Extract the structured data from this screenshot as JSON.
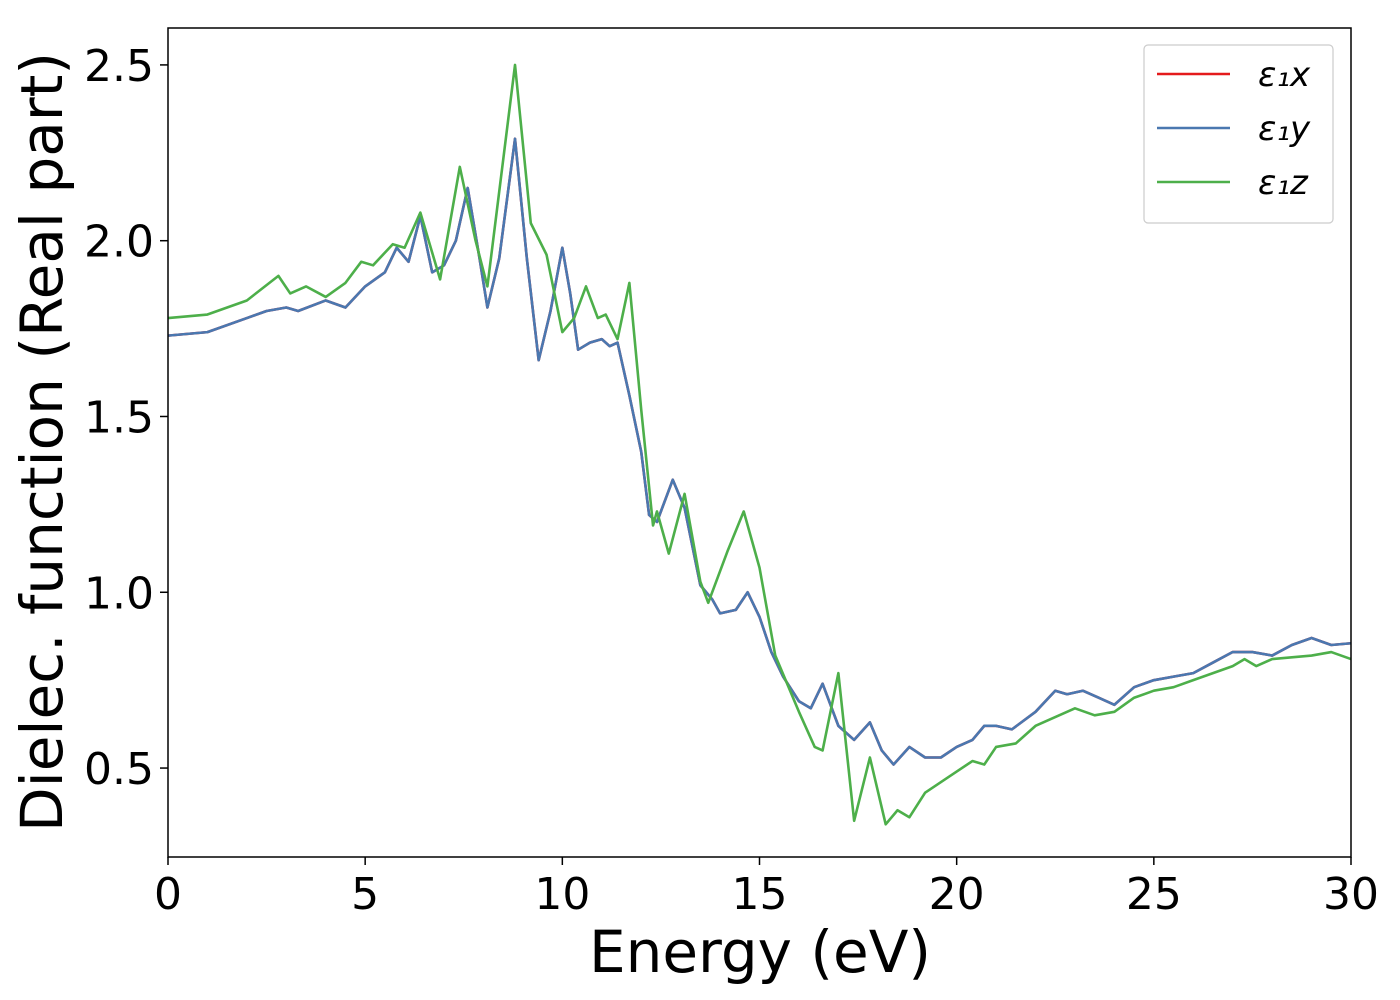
{
  "chart_data": {
    "type": "line",
    "xlabel": "Energy (eV)",
    "ylabel": "Dielec. function (Real part)",
    "xlim": [
      0,
      30
    ],
    "xticks": [
      0,
      5,
      10,
      15,
      20,
      25,
      30
    ],
    "ylim": [
      0.247,
      2.605
    ],
    "yticks": [
      0.5,
      {
        "value": 1,
        "label": "1.0"
      },
      1.5,
      {
        "value": 2,
        "label": "2.0"
      },
      2.5
    ],
    "legend": "upper right",
    "series": [
      {
        "name": "ε₁x",
        "color": "#e41a1c",
        "x": [
          0,
          1,
          2,
          2.5,
          3,
          3.3,
          4,
          4.5,
          5,
          5.5,
          5.8,
          6.1,
          6.4,
          6.7,
          7.0,
          7.3,
          7.6,
          7.9,
          8.1,
          8.4,
          8.8,
          9.1,
          9.4,
          9.7,
          10.0,
          10.2,
          10.4,
          10.7,
          11.0,
          11.2,
          11.4,
          11.7,
          12.0,
          12.2,
          12.4,
          12.8,
          13.1,
          13.5,
          13.8,
          14.0,
          14.4,
          14.7,
          15.0,
          15.3,
          15.6,
          16.0,
          16.3,
          16.6,
          17.0,
          17.4,
          17.8,
          18.1,
          18.4,
          18.8,
          19.2,
          19.6,
          20.0,
          20.4,
          20.7,
          21.0,
          21.4,
          22.0,
          22.5,
          22.8,
          23.2,
          23.6,
          24.0,
          24.5,
          25.0,
          25.5,
          26.0,
          26.5,
          27.0,
          27.5,
          28.0,
          28.5,
          29.0,
          29.5,
          30.0
        ],
        "values": [
          1.73,
          1.74,
          1.78,
          1.8,
          1.81,
          1.8,
          1.83,
          1.81,
          1.87,
          1.91,
          1.98,
          1.94,
          2.07,
          1.91,
          1.93,
          2.0,
          2.15,
          1.95,
          1.81,
          1.95,
          2.29,
          1.95,
          1.66,
          1.8,
          1.98,
          1.85,
          1.69,
          1.71,
          1.72,
          1.7,
          1.71,
          1.56,
          1.4,
          1.22,
          1.2,
          1.32,
          1.24,
          1.02,
          0.98,
          0.94,
          0.95,
          1.0,
          0.93,
          0.83,
          0.76,
          0.69,
          0.67,
          0.74,
          0.62,
          0.58,
          0.63,
          0.55,
          0.51,
          0.56,
          0.53,
          0.53,
          0.56,
          0.58,
          0.62,
          0.62,
          0.61,
          0.66,
          0.72,
          0.71,
          0.72,
          0.7,
          0.68,
          0.73,
          0.75,
          0.76,
          0.77,
          0.8,
          0.83,
          0.83,
          0.82,
          0.85,
          0.87,
          0.85,
          0.855
        ]
      },
      {
        "name": "ε₁y",
        "color": "#4a78b0",
        "x": [
          0,
          1,
          2,
          2.5,
          3,
          3.3,
          4,
          4.5,
          5,
          5.5,
          5.8,
          6.1,
          6.4,
          6.7,
          7.0,
          7.3,
          7.6,
          7.9,
          8.1,
          8.4,
          8.8,
          9.1,
          9.4,
          9.7,
          10.0,
          10.2,
          10.4,
          10.7,
          11.0,
          11.2,
          11.4,
          11.7,
          12.0,
          12.2,
          12.4,
          12.8,
          13.1,
          13.5,
          13.8,
          14.0,
          14.4,
          14.7,
          15.0,
          15.3,
          15.6,
          16.0,
          16.3,
          16.6,
          17.0,
          17.4,
          17.8,
          18.1,
          18.4,
          18.8,
          19.2,
          19.6,
          20.0,
          20.4,
          20.7,
          21.0,
          21.4,
          22.0,
          22.5,
          22.8,
          23.2,
          23.6,
          24.0,
          24.5,
          25.0,
          25.5,
          26.0,
          26.5,
          27.0,
          27.5,
          28.0,
          28.5,
          29.0,
          29.5,
          30.0
        ],
        "values": [
          1.73,
          1.74,
          1.78,
          1.8,
          1.81,
          1.8,
          1.83,
          1.81,
          1.87,
          1.91,
          1.98,
          1.94,
          2.07,
          1.91,
          1.93,
          2.0,
          2.15,
          1.95,
          1.81,
          1.95,
          2.29,
          1.95,
          1.66,
          1.8,
          1.98,
          1.85,
          1.69,
          1.71,
          1.72,
          1.7,
          1.71,
          1.56,
          1.4,
          1.22,
          1.2,
          1.32,
          1.24,
          1.02,
          0.98,
          0.94,
          0.95,
          1.0,
          0.93,
          0.83,
          0.76,
          0.69,
          0.67,
          0.74,
          0.62,
          0.58,
          0.63,
          0.55,
          0.51,
          0.56,
          0.53,
          0.53,
          0.56,
          0.58,
          0.62,
          0.62,
          0.61,
          0.66,
          0.72,
          0.71,
          0.72,
          0.7,
          0.68,
          0.73,
          0.75,
          0.76,
          0.77,
          0.8,
          0.83,
          0.83,
          0.82,
          0.85,
          0.87,
          0.85,
          0.855
        ]
      },
      {
        "name": "ε₁z",
        "color": "#4daf4a",
        "x": [
          0,
          1,
          2,
          2.8,
          3.1,
          3.5,
          4.0,
          4.5,
          4.9,
          5.2,
          5.7,
          6.0,
          6.4,
          6.9,
          7.4,
          7.8,
          8.1,
          8.8,
          9.2,
          9.6,
          10.0,
          10.3,
          10.6,
          10.9,
          11.1,
          11.4,
          11.7,
          12.0,
          12.3,
          12.4,
          12.7,
          13.1,
          13.5,
          13.7,
          14.2,
          14.6,
          15.0,
          15.4,
          16.0,
          16.4,
          16.6,
          17.0,
          17.4,
          17.8,
          18.2,
          18.5,
          18.8,
          19.2,
          20.0,
          20.4,
          20.7,
          21.0,
          21.5,
          22.0,
          22.4,
          23.0,
          23.5,
          24.0,
          24.5,
          25.0,
          25.5,
          26.0,
          26.5,
          27.0,
          27.3,
          27.6,
          28.0,
          29.0,
          29.5,
          30.0
        ],
        "values": [
          1.78,
          1.79,
          1.83,
          1.9,
          1.85,
          1.87,
          1.84,
          1.88,
          1.94,
          1.93,
          1.99,
          1.98,
          2.08,
          1.89,
          2.21,
          2.0,
          1.87,
          2.5,
          2.05,
          1.96,
          1.74,
          1.78,
          1.87,
          1.78,
          1.79,
          1.72,
          1.88,
          1.52,
          1.19,
          1.23,
          1.11,
          1.28,
          1.03,
          0.97,
          1.12,
          1.23,
          1.07,
          0.82,
          0.66,
          0.56,
          0.55,
          0.77,
          0.35,
          0.53,
          0.34,
          0.38,
          0.36,
          0.43,
          0.49,
          0.52,
          0.51,
          0.56,
          0.57,
          0.62,
          0.64,
          0.67,
          0.65,
          0.66,
          0.7,
          0.72,
          0.73,
          0.75,
          0.77,
          0.79,
          0.81,
          0.79,
          0.81,
          0.82,
          0.83,
          0.81
        ]
      }
    ]
  }
}
